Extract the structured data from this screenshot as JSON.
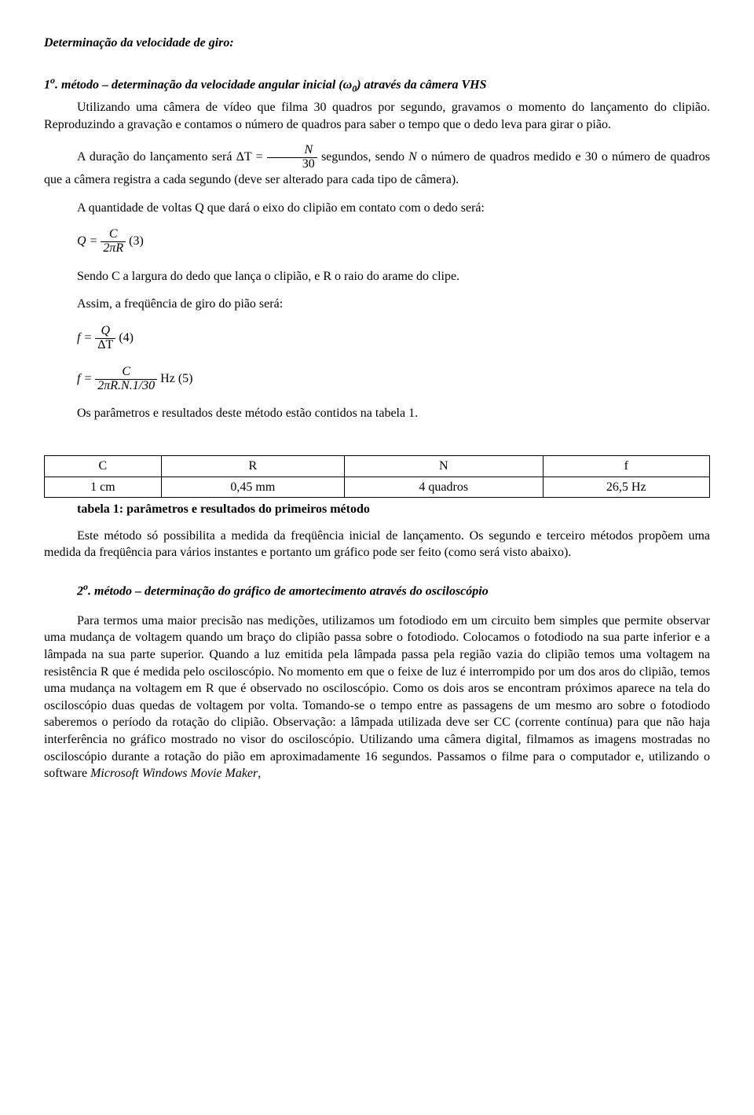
{
  "title": "Determinação da velocidade de giro:",
  "method1": {
    "num_prefix": "1",
    "num_suffix": "o",
    "heading_text": ". método – determinação da velocidade angular inicial (ω",
    "heading_sub": "0",
    "heading_tail": ") através da câmera VHS",
    "para1": "Utilizando uma câmera de vídeo que filma 30 quadros por segundo, gravamos o momento do lançamento do clipião. Reproduzindo a gravação e contamos o número de quadros para saber o tempo que o dedo leva para girar o pião.",
    "para2_a": "A duração do lançamento será ",
    "para2_b": " segundos, sendo ",
    "para2_c": " o número de quadros medido e 30 o número de quadros que a câmera registra a cada segundo (deve ser alterado para cada tipo de câmera).",
    "dt_lhs": "ΔT =",
    "dt_num": "N",
    "dt_den": "30",
    "N_letter": "N",
    "para3": "A quantidade de voltas Q que dará o eixo do clipião em contato com o dedo será:",
    "eq3_lhs": "Q =",
    "eq3_num": "C",
    "eq3_den": "2πR",
    "eq3_label": " (3)",
    "para4": "Sendo C a largura do dedo que lança o clipião, e R o raio do arame do clipe.",
    "para5": "Assim, a freqüência de giro do pião será:",
    "eq4_lhs": "f =",
    "eq4_num": "Q",
    "eq4_den": "ΔT",
    "eq4_label": " (4)",
    "eq5_lhs": "f =",
    "eq5_num": "C",
    "eq5_den": "2πR.N.1/30",
    "eq5_unit": " Hz (5)",
    "para6": "Os parâmetros e resultados deste método estão contidos na tabela 1."
  },
  "table1": {
    "headers": [
      "C",
      "R",
      "N",
      "f"
    ],
    "row": [
      "1 cm",
      "0,45 mm",
      "4 quadros",
      "26,5 Hz"
    ],
    "caption": "tabela 1: parâmetros e resultados do primeiros método"
  },
  "after_table_para": "Este método só possibilita a medida da freqüência inicial de lançamento. Os segundo e terceiro métodos propõem uma medida da freqüência para vários instantes e portanto um gráfico pode ser feito (como será visto abaixo).",
  "method2": {
    "num_prefix": "2",
    "num_suffix": "o",
    "heading_text": ". método – determinação do gráfico de amortecimento através do osciloscópio",
    "para_a": "Para termos uma maior precisão nas medições, utilizamos um fotodiodo em um circuito bem simples que permite observar uma mudança de voltagem quando um braço do clipião passa sobre o fotodiodo. Colocamos o fotodiodo na sua parte inferior e a lâmpada na sua parte superior. Quando a luz emitida pela lâmpada passa pela região vazia do clipião temos uma voltagem na resistência R que é medida pelo osciloscópio. No momento em que o feixe de luz é interrompido por um dos aros do clipião, temos uma mudança na voltagem em R que é observado no osciloscópio. Como os dois aros se encontram próximos aparece na tela do osciloscópio duas quedas de voltagem por volta. Tomando-se o tempo entre as passagens de um mesmo aro sobre o fotodiodo saberemos o período da rotação do clipião. Observação: a lâmpada utilizada deve ser CC (corrente contínua) para que não haja interferência no gráfico mostrado no visor do osciloscópio. Utilizando uma câmera digital, filmamos as imagens mostradas no osciloscópio durante a rotação do pião em aproximadamente 16 segundos. Passamos o filme para o computador e, utilizando o software ",
    "software": "Microsoft Windows Movie Maker",
    "tail": ","
  }
}
